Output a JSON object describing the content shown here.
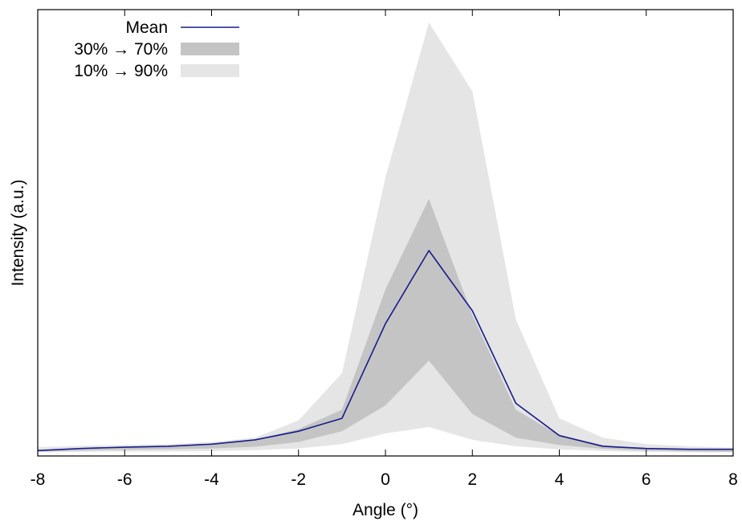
{
  "chart_data": {
    "type": "area",
    "title": "",
    "xlabel": "Angle (°)",
    "ylabel": "Intensity (a.u.)",
    "xlim": [
      -8,
      8
    ],
    "ylim": [
      0,
      1
    ],
    "grid": false,
    "legend_position": "top-left",
    "x_ticks": [
      -8,
      -6,
      -4,
      -2,
      0,
      2,
      4,
      6,
      8
    ],
    "x_tick_labels": [
      "-8",
      "-6",
      "-4",
      "-2",
      "0",
      "2",
      "4",
      "6",
      "8"
    ],
    "x": [
      -8,
      -7,
      -6,
      -5,
      -4,
      -3,
      -2,
      -1,
      0,
      1,
      2,
      3,
      4,
      5,
      6,
      7,
      8
    ],
    "series": [
      {
        "name": "10% → 90%",
        "kind": "band",
        "color": "#e5e5e5",
        "lower": [
          0.001,
          0.002,
          0.003,
          0.003,
          0.004,
          0.006,
          0.01,
          0.02,
          0.045,
          0.06,
          0.03,
          0.015,
          0.008,
          0.004,
          0.002,
          0.001,
          0.001
        ],
        "upper": [
          0.013,
          0.016,
          0.018,
          0.02,
          0.025,
          0.035,
          0.075,
          0.185,
          0.64,
          1.0,
          0.84,
          0.31,
          0.08,
          0.035,
          0.02,
          0.015,
          0.012
        ]
      },
      {
        "name": "30% → 70%",
        "kind": "band",
        "color": "#c4c4c4",
        "lower": [
          0.003,
          0.005,
          0.007,
          0.008,
          0.01,
          0.014,
          0.025,
          0.05,
          0.11,
          0.214,
          0.09,
          0.035,
          0.018,
          0.009,
          0.005,
          0.003,
          0.002
        ],
        "upper": [
          0.005,
          0.008,
          0.012,
          0.015,
          0.02,
          0.03,
          0.055,
          0.1,
          0.38,
          0.59,
          0.32,
          0.1,
          0.04,
          0.018,
          0.01,
          0.008,
          0.006
        ]
      },
      {
        "name": "Mean",
        "kind": "line",
        "color": "#1a1a8c",
        "values": [
          0.005,
          0.01,
          0.013,
          0.015,
          0.02,
          0.03,
          0.05,
          0.08,
          0.3,
          0.47,
          0.33,
          0.115,
          0.04,
          0.015,
          0.01,
          0.008,
          0.008
        ]
      }
    ]
  }
}
